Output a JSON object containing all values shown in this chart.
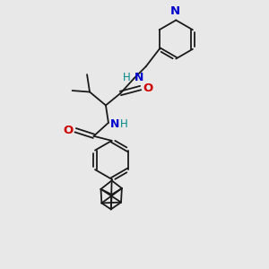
{
  "bg_color": "#e8e8e8",
  "bond_color": "#1a1a1a",
  "nitrogen_color": "#0000cc",
  "oxygen_color": "#cc0000",
  "hn_color": "#008888",
  "font_size": 8.5,
  "fig_size": [
    3.0,
    3.0
  ],
  "dpi": 100,
  "xlim": [
    0,
    10
  ],
  "ylim": [
    0,
    10
  ]
}
